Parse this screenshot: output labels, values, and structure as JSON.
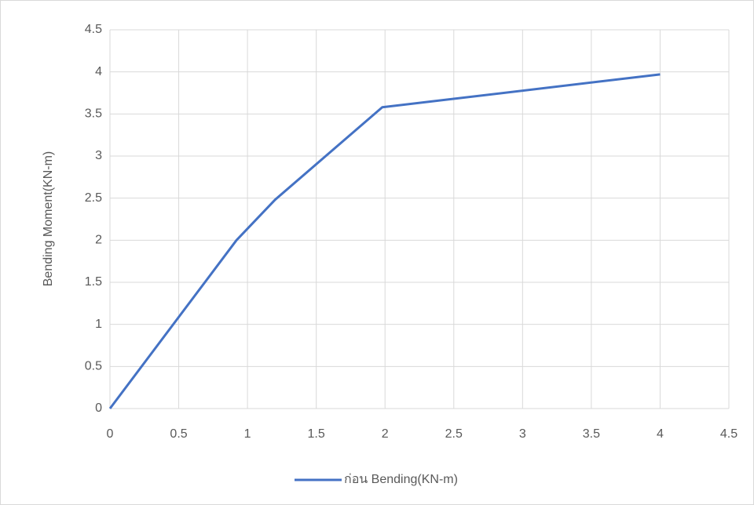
{
  "chart_data": {
    "type": "line",
    "y_label": "Bending Moment(KN-m)",
    "x": [
      0,
      0.92,
      1.2,
      1.98,
      4.0
    ],
    "series": [
      {
        "name": "ก่อน Bending(KN-m)",
        "color": "#4472c4",
        "values": [
          0,
          2.0,
          2.48,
          3.58,
          3.97
        ]
      }
    ],
    "xlim": [
      0,
      4.5
    ],
    "xticks": [
      0,
      0.5,
      1,
      1.5,
      2,
      2.5,
      3,
      3.5,
      4,
      4.5
    ],
    "ylim": [
      0,
      4.5
    ],
    "yticks": [
      0,
      0.5,
      1,
      1.5,
      2,
      2.5,
      3,
      3.5,
      4,
      4.5
    ],
    "grid": true,
    "legend": "bottom"
  }
}
